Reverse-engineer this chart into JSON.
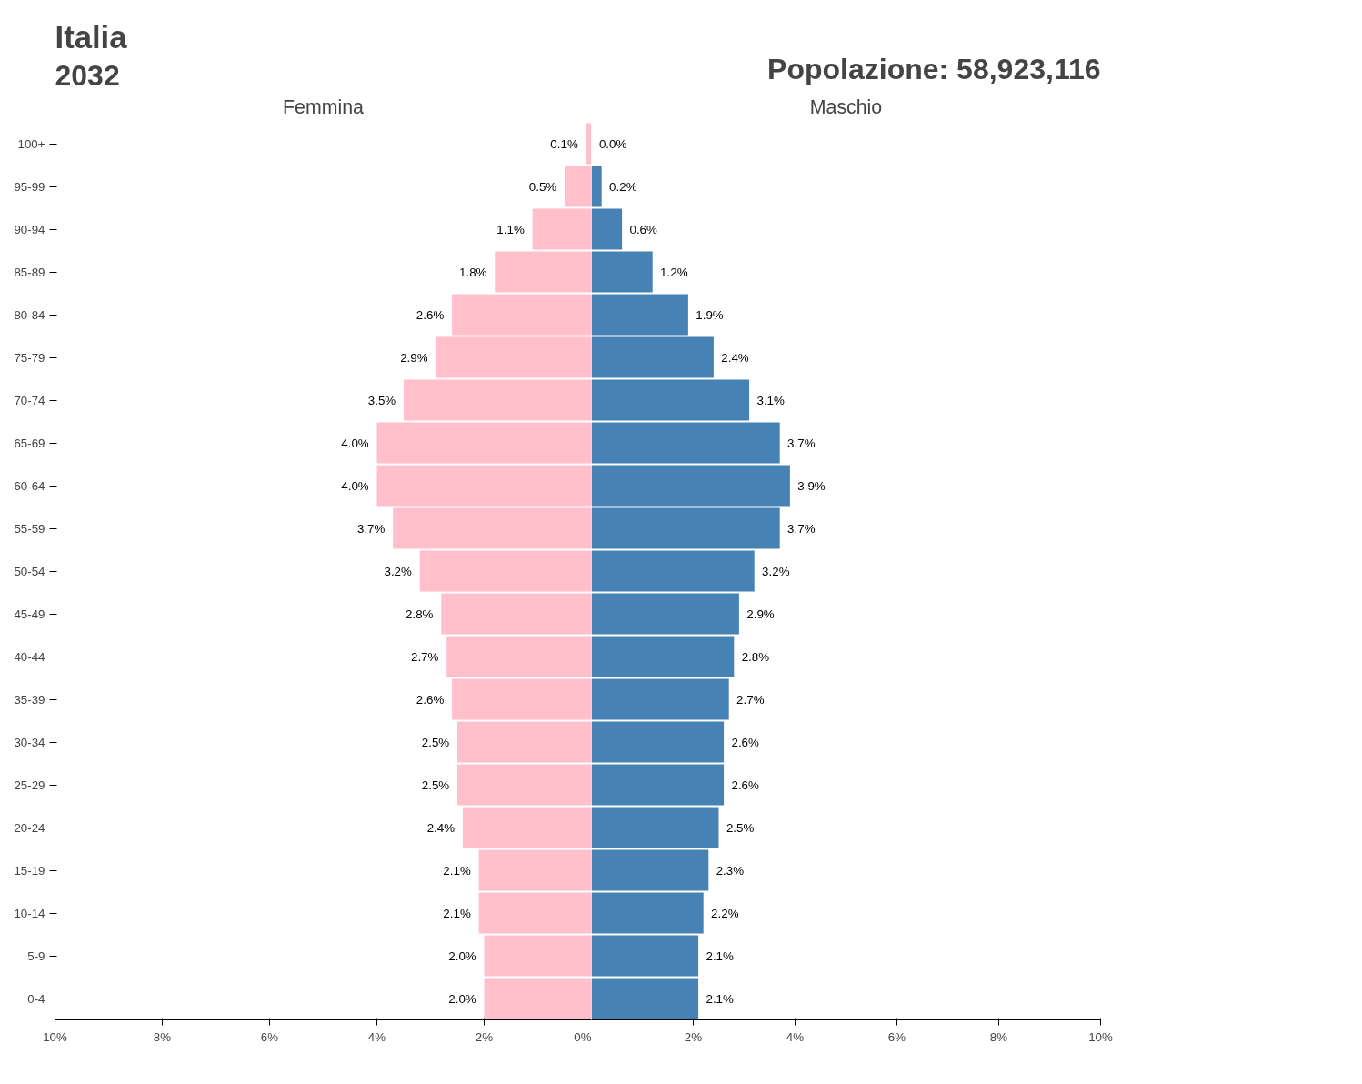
{
  "chart_data": [
    {
      "type": "bar",
      "orientation": "horizontal",
      "title": "Italia",
      "subtitle": "2032",
      "xlabel": "Femmina",
      "categories": [
        "100+",
        "95-99",
        "90-94",
        "85-89",
        "80-84",
        "75-79",
        "70-74",
        "65-69",
        "60-64",
        "55-59",
        "50-54",
        "45-49",
        "40-44",
        "35-39",
        "30-34",
        "25-29",
        "20-24",
        "15-19",
        "10-14",
        "5-9",
        "0-4"
      ],
      "series": [
        {
          "color": "#ffc0cb",
          "values": [
            0.1,
            0.5,
            1.1,
            1.8,
            2.6,
            2.9,
            3.5,
            4.0,
            4.0,
            3.7,
            3.2,
            2.8,
            2.7,
            2.6,
            2.5,
            2.5,
            2.4,
            2.1,
            2.1,
            2.0,
            2.0
          ],
          "value_labels": [
            "0.1%",
            "0.5%",
            "1.1%",
            "1.8%",
            "2.6%",
            "2.9%",
            "3.5%",
            "4.0%",
            "4.0%",
            "3.7%",
            "3.2%",
            "2.8%",
            "2.7%",
            "2.6%",
            "2.5%",
            "2.5%",
            "2.4%",
            "2.1%",
            "2.1%",
            "2.0%",
            "2.0%"
          ]
        }
      ],
      "xlim": [
        10,
        0
      ],
      "xticks": [
        {
          "value": 10,
          "label": "10%"
        },
        {
          "value": 8,
          "label": "8%"
        },
        {
          "value": 6,
          "label": "6%"
        },
        {
          "value": 4,
          "label": "4%"
        },
        {
          "value": 2,
          "label": "2%"
        },
        {
          "value": 0,
          "label": "0%"
        }
      ],
      "grid": false
    },
    {
      "type": "bar",
      "orientation": "horizontal",
      "subtitle": "Popolazione: 58,923,116",
      "xlabel": "Maschio",
      "categories": [
        null,
        null,
        null,
        null,
        null,
        null,
        null,
        null,
        null,
        null,
        null,
        null,
        null,
        null,
        null,
        null,
        null,
        null,
        null,
        null,
        null
      ],
      "series": [
        {
          "color": "#4682b4",
          "values": [
            0.0,
            0.2,
            0.6,
            1.2,
            1.9,
            2.4,
            3.1,
            3.7,
            3.9,
            3.7,
            3.2,
            2.9,
            2.8,
            2.7,
            2.6,
            2.6,
            2.5,
            2.3,
            2.2,
            2.1,
            2.1
          ],
          "value_labels": [
            "0.0%",
            "0.2%",
            "0.6%",
            "1.2%",
            "1.9%",
            "2.4%",
            "3.1%",
            "3.7%",
            "3.9%",
            "3.7%",
            "3.2%",
            "2.9%",
            "2.8%",
            "2.7%",
            "2.6%",
            "2.6%",
            "2.5%",
            "2.3%",
            "2.2%",
            "2.1%",
            "2.1%"
          ]
        }
      ],
      "xlim": [
        0,
        10
      ],
      "xticks": [
        {
          "value": 2,
          "label": "2%"
        },
        {
          "value": 4,
          "label": "4%"
        },
        {
          "value": 6,
          "label": "6%"
        },
        {
          "value": 8,
          "label": "8%"
        },
        {
          "value": 10,
          "label": "10%"
        }
      ],
      "grid": false,
      "tick_labels": "x"
    }
  ]
}
